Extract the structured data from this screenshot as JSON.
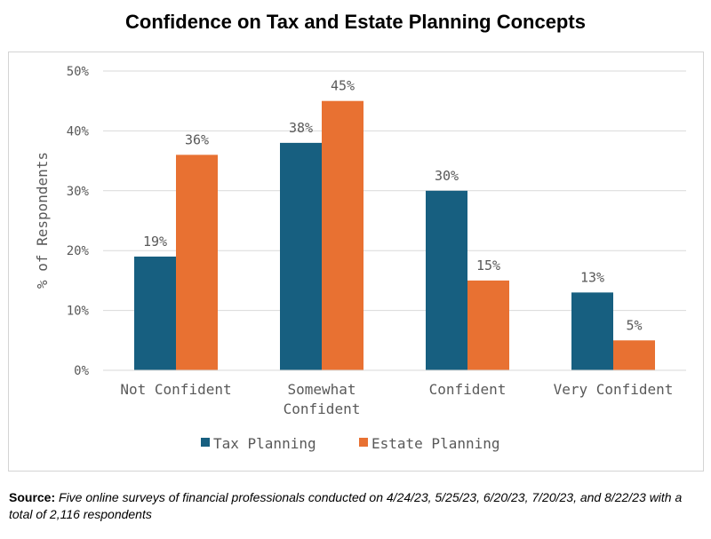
{
  "colors": {
    "tax": "#175f80",
    "estate": "#e87132",
    "grid": "#d9d9d9",
    "text": "#595959"
  },
  "chart_data": {
    "type": "bar",
    "title": "Confidence on Tax and Estate Planning Concepts",
    "ylabel": "% of Respondents",
    "xlabel": "",
    "ylim": [
      0,
      50
    ],
    "yticks": [
      "0%",
      "10%",
      "20%",
      "30%",
      "40%",
      "50%"
    ],
    "categories": [
      "Not Confident",
      "Somewhat Confident",
      "Confident",
      "Very Confident"
    ],
    "series": [
      {
        "name": "Tax Planning",
        "values": [
          19,
          38,
          30,
          13
        ],
        "labels": [
          "19%",
          "38%",
          "30%",
          "13%"
        ]
      },
      {
        "name": "Estate Planning",
        "values": [
          36,
          45,
          15,
          5
        ],
        "labels": [
          "36%",
          "45%",
          "15%",
          "5%"
        ]
      }
    ],
    "grid": true,
    "legend": "bottom"
  },
  "source": {
    "label": "Source:",
    "text": "Five online surveys of financial professionals conducted on 4/24/23, 5/25/23, 6/20/23, 7/20/23, and 8/22/23 with a total of 2,116 respondents"
  }
}
